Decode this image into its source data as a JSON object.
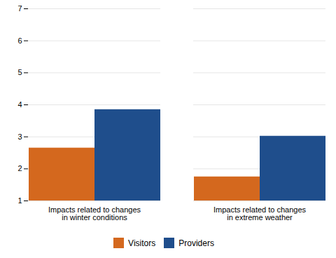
{
  "chart_data": {
    "type": "bar",
    "categories": [
      "Impacts related to changes\nin winter conditions",
      "Impacts related to changes\nin extreme weather"
    ],
    "series": [
      {
        "name": "Visitors",
        "color": "#D4681E",
        "values": [
          2.65,
          1.75
        ]
      },
      {
        "name": "Providers",
        "color": "#1F4E8C",
        "values": [
          3.85,
          3.02
        ]
      }
    ],
    "ylim": [
      1,
      7
    ],
    "yticks": [
      1,
      2,
      3,
      4,
      5,
      6,
      7
    ],
    "grid": true,
    "legend": "bottom"
  }
}
